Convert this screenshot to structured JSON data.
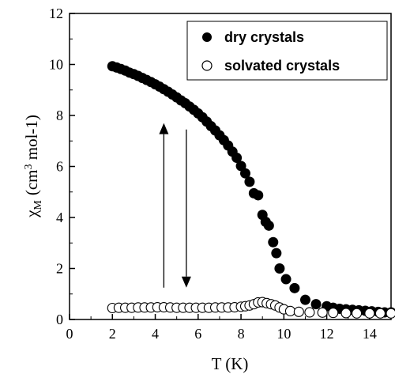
{
  "chart_data": {
    "type": "scatter",
    "xlabel": "T (K)",
    "ylabel": "χM (cm3 mol-1)",
    "ylabel_parts": {
      "symbol": "χ",
      "symbol_sub": "M",
      "unit_start": "(cm",
      "unit_exp": "3",
      "unit_end": " mol-1)"
    },
    "xlim": [
      0,
      15
    ],
    "ylim": [
      0,
      12
    ],
    "x_ticks": [
      0,
      2,
      4,
      6,
      8,
      10,
      12,
      14
    ],
    "y_ticks": [
      0,
      2,
      4,
      6,
      8,
      10,
      12
    ],
    "grid": false,
    "legend_position": "top-right",
    "series": [
      {
        "name": "dry crystals",
        "marker": "filled-circle",
        "color": "#000000",
        "x": [
          2.0,
          2.2,
          2.4,
          2.6,
          2.8,
          3.0,
          3.2,
          3.4,
          3.6,
          3.8,
          4.0,
          4.2,
          4.4,
          4.6,
          4.8,
          5.0,
          5.2,
          5.4,
          5.6,
          5.8,
          6.0,
          6.2,
          6.4,
          6.6,
          6.8,
          7.0,
          7.2,
          7.4,
          7.6,
          7.8,
          8.0,
          8.2,
          8.4,
          8.6,
          8.8,
          9.0,
          9.15,
          9.3,
          9.5,
          9.65,
          9.8,
          10.1,
          10.5,
          11.0,
          11.5,
          12.0,
          12.3,
          12.6,
          12.9,
          13.2,
          13.5,
          13.8,
          14.1,
          14.4,
          14.7,
          15.0
        ],
        "y": [
          9.93,
          9.88,
          9.82,
          9.76,
          9.68,
          9.62,
          9.55,
          9.47,
          9.39,
          9.31,
          9.22,
          9.13,
          9.03,
          8.93,
          8.82,
          8.71,
          8.59,
          8.48,
          8.35,
          8.22,
          8.08,
          7.93,
          7.76,
          7.58,
          7.41,
          7.22,
          7.03,
          6.82,
          6.58,
          6.34,
          6.02,
          5.73,
          5.4,
          4.95,
          4.87,
          4.1,
          3.83,
          3.68,
          3.03,
          2.6,
          2.0,
          1.58,
          1.23,
          0.77,
          0.6,
          0.52,
          0.46,
          0.42,
          0.4,
          0.38,
          0.36,
          0.34,
          0.32,
          0.3,
          0.28,
          0.28
        ]
      },
      {
        "name": "solvated crystals",
        "marker": "open-circle",
        "color": "#000000",
        "x": [
          2.0,
          2.3,
          2.6,
          2.9,
          3.2,
          3.5,
          3.8,
          4.1,
          4.4,
          4.7,
          5.0,
          5.3,
          5.6,
          5.9,
          6.2,
          6.5,
          6.8,
          7.1,
          7.4,
          7.7,
          8.0,
          8.2,
          8.4,
          8.6,
          8.8,
          9.0,
          9.2,
          9.4,
          9.6,
          9.8,
          10.0,
          10.3,
          10.7,
          11.2,
          11.8,
          12.3,
          12.9,
          13.4,
          14.0,
          14.5,
          15.0
        ],
        "y": [
          0.45,
          0.46,
          0.46,
          0.46,
          0.47,
          0.47,
          0.47,
          0.48,
          0.48,
          0.47,
          0.46,
          0.46,
          0.46,
          0.46,
          0.46,
          0.46,
          0.47,
          0.47,
          0.47,
          0.48,
          0.5,
          0.52,
          0.55,
          0.6,
          0.67,
          0.68,
          0.64,
          0.6,
          0.55,
          0.47,
          0.4,
          0.33,
          0.3,
          0.28,
          0.27,
          0.26,
          0.25,
          0.24,
          0.24,
          0.24,
          0.24
        ]
      }
    ],
    "annotations": [
      {
        "type": "arrow",
        "direction": "up",
        "x": 4.4,
        "y_from": 1.25,
        "y_to": 7.7
      },
      {
        "type": "arrow",
        "direction": "down",
        "x": 5.45,
        "y_from": 7.45,
        "y_to": 1.25
      }
    ]
  }
}
